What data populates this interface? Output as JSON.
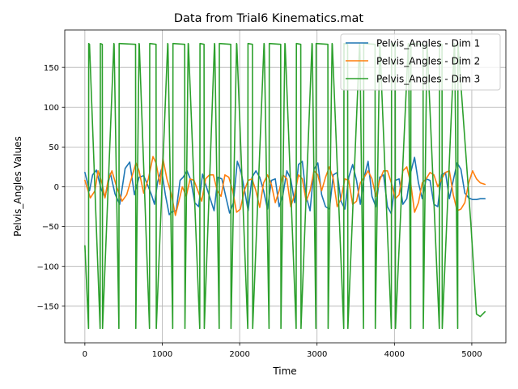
{
  "chart_data": {
    "type": "line",
    "title": "Data from Trial6 Kinematics.mat",
    "xlabel": "Time",
    "ylabel": "Pelvis_Angles Values",
    "xlim": [
      -260,
      5440
    ],
    "ylim": [
      -196,
      197
    ],
    "xticks": [
      0,
      1000,
      2000,
      3000,
      4000,
      5000
    ],
    "yticks": [
      -150,
      -100,
      -50,
      0,
      50,
      100,
      150
    ],
    "xtick_labels": [
      "0",
      "1000",
      "2000",
      "3000",
      "4000",
      "5000"
    ],
    "ytick_labels": [
      "−150",
      "−100",
      "−50",
      "0",
      "50",
      "100",
      "150"
    ],
    "grid": true,
    "legend_position": "top-right",
    "series": [
      {
        "name": "Pelvis_Angles - Dim 1",
        "color": "#1f77b4",
        "x": [
          0,
          60,
          100,
          150,
          210,
          260,
          330,
          390,
          450,
          520,
          580,
          640,
          700,
          760,
          820,
          860,
          900,
          940,
          990,
          1040,
          1090,
          1130,
          1180,
          1230,
          1270,
          1320,
          1370,
          1420,
          1470,
          1520,
          1570,
          1620,
          1670,
          1720,
          1770,
          1820,
          1870,
          1920,
          1970,
          2020,
          2070,
          2110,
          2160,
          2210,
          2260,
          2310,
          2360,
          2410,
          2460,
          2510,
          2560,
          2610,
          2660,
          2710,
          2760,
          2810,
          2860,
          2910,
          2960,
          3010,
          3060,
          3110,
          3160,
          3210,
          3260,
          3310,
          3360,
          3410,
          3460,
          3510,
          3560,
          3610,
          3660,
          3710,
          3760,
          3810,
          3860,
          3910,
          3960,
          4010,
          4060,
          4110,
          4160,
          4210,
          4260,
          4310,
          4360,
          4410,
          4460,
          4510,
          4560,
          4610,
          4660,
          4710,
          4760,
          4810,
          4860,
          4910,
          4960,
          5010,
          5060,
          5110,
          5170
        ],
        "y": [
          18,
          -5,
          15,
          21,
          -3,
          -13,
          17,
          -9,
          -22,
          23,
          31,
          -10,
          12,
          14,
          0,
          -10,
          -22,
          6,
          22,
          -10,
          -35,
          -31,
          -30,
          8,
          12,
          20,
          8,
          -20,
          -25,
          16,
          0,
          -15,
          -30,
          12,
          10,
          -12,
          -33,
          -20,
          32,
          18,
          -8,
          -30,
          12,
          20,
          12,
          -5,
          -28,
          8,
          10,
          -25,
          -10,
          20,
          10,
          -20,
          28,
          32,
          -12,
          -30,
          22,
          30,
          -10,
          -25,
          -28,
          15,
          18,
          -18,
          -28,
          12,
          28,
          8,
          -22,
          12,
          32,
          -12,
          -25,
          12,
          15,
          -25,
          -34,
          8,
          10,
          -22,
          -15,
          18,
          37,
          5,
          -15,
          10,
          8,
          -22,
          -25,
          15,
          18,
          -15,
          8,
          30,
          22,
          -8,
          -14,
          -16,
          -16,
          -15,
          -15
        ]
      },
      {
        "name": "Pelvis_Angles - Dim 2",
        "color": "#ff7f0e",
        "x": [
          0,
          70,
          130,
          170,
          220,
          260,
          300,
          350,
          410,
          480,
          540,
          600,
          660,
          700,
          760,
          820,
          880,
          920,
          970,
          1010,
          1060,
          1120,
          1170,
          1210,
          1260,
          1310,
          1360,
          1410,
          1460,
          1510,
          1560,
          1610,
          1660,
          1710,
          1760,
          1810,
          1860,
          1910,
          1960,
          2010,
          2060,
          2110,
          2160,
          2210,
          2260,
          2310,
          2360,
          2410,
          2460,
          2510,
          2560,
          2610,
          2660,
          2710,
          2760,
          2810,
          2860,
          2910,
          2960,
          3010,
          3060,
          3110,
          3160,
          3210,
          3260,
          3310,
          3360,
          3410,
          3460,
          3510,
          3560,
          3610,
          3660,
          3710,
          3760,
          3810,
          3860,
          3910,
          3960,
          4010,
          4060,
          4110,
          4160,
          4210,
          4260,
          4310,
          4360,
          4410,
          4460,
          4510,
          4560,
          4610,
          4660,
          4710,
          4760,
          4810,
          4860,
          4910,
          4960,
          5010,
          5060,
          5110,
          5170
        ],
        "y": [
          8,
          -14,
          -5,
          20,
          5,
          -14,
          8,
          20,
          0,
          -18,
          -10,
          10,
          30,
          20,
          -8,
          10,
          38,
          30,
          3,
          35,
          10,
          -10,
          -36,
          -20,
          0,
          -12,
          10,
          8,
          -5,
          -18,
          10,
          15,
          15,
          -5,
          -12,
          15,
          12,
          -5,
          -32,
          -28,
          -5,
          8,
          10,
          -5,
          -26,
          5,
          15,
          3,
          -20,
          -5,
          15,
          10,
          -25,
          -10,
          15,
          10,
          -18,
          -5,
          20,
          15,
          -5,
          12,
          25,
          10,
          -25,
          -15,
          10,
          8,
          -22,
          -18,
          5,
          12,
          20,
          10,
          -12,
          8,
          20,
          20,
          5,
          -15,
          -10,
          20,
          25,
          5,
          -32,
          -20,
          5,
          10,
          18,
          15,
          0,
          10,
          18,
          20,
          -10,
          -30,
          -28,
          -20,
          5,
          20,
          10,
          5,
          3
        ]
      },
      {
        "name": "Pelvis_Angles - Dim 3",
        "color": "#2ca02c",
        "x": [
          0,
          48,
          50,
          60,
          197,
          200,
          225,
          228,
          375,
          378,
          440,
          443,
          655,
          658,
          700,
          703,
          835,
          838,
          920,
          923,
          1070,
          1073,
          1135,
          1138,
          1290,
          1293,
          1335,
          1338,
          1485,
          1488,
          1540,
          1543,
          1675,
          1678,
          1735,
          1738,
          1885,
          1888,
          1960,
          1963,
          2105,
          2108,
          2165,
          2168,
          2315,
          2318,
          2380,
          2383,
          2530,
          2533,
          2585,
          2588,
          2730,
          2733,
          2790,
          2793,
          2935,
          2938,
          2985,
          2988,
          3140,
          3143,
          3195,
          3198,
          3345,
          3348,
          3395,
          3398,
          3550,
          3553,
          3600,
          3603,
          3750,
          3753,
          3810,
          3813,
          3960,
          3963,
          4010,
          4013,
          4180,
          4183,
          4210,
          4213,
          4370,
          4373,
          4420,
          4423,
          4580,
          4583,
          4615,
          4618,
          4775,
          4778,
          4818,
          4821,
          4990,
          5060,
          5110,
          5170
        ],
        "y": [
          -74,
          -178,
          180,
          179,
          -178,
          180,
          179,
          -178,
          180,
          179,
          -178,
          180,
          179,
          -178,
          180,
          179,
          -178,
          180,
          179,
          -178,
          180,
          179,
          -178,
          180,
          179,
          -178,
          180,
          179,
          -178,
          180,
          179,
          -178,
          180,
          179,
          -178,
          180,
          179,
          -178,
          180,
          179,
          -178,
          180,
          179,
          -178,
          180,
          179,
          -178,
          180,
          179,
          -178,
          180,
          179,
          -178,
          180,
          179,
          -178,
          180,
          179,
          -178,
          180,
          179,
          -178,
          180,
          179,
          -178,
          180,
          179,
          -178,
          180,
          179,
          -178,
          180,
          179,
          -178,
          180,
          179,
          -178,
          180,
          179,
          -178,
          180,
          179,
          -178,
          180,
          179,
          -178,
          180,
          179,
          -178,
          180,
          179,
          -178,
          180,
          179,
          -178,
          180,
          -50,
          -160,
          -163,
          -157
        ]
      }
    ]
  }
}
